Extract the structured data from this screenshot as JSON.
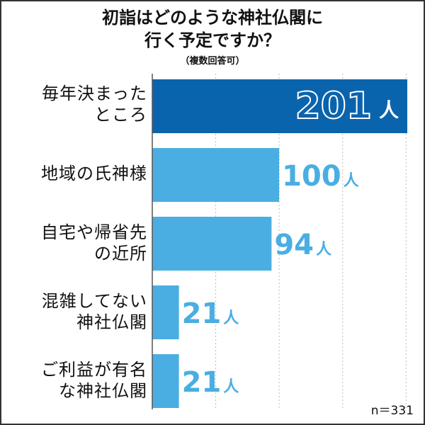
{
  "title": {
    "line1": "初詣はどのような神社仏閣に",
    "line2": "行く予定ですか？",
    "note": "（複数回答可）"
  },
  "chart_data": {
    "type": "bar",
    "orientation": "horizontal",
    "categories": [
      [
        "毎年決まった",
        "ところ"
      ],
      [
        "地域の氏神様"
      ],
      [
        "自宅や帰省先",
        "の近所"
      ],
      [
        "混雑してない",
        "神社仏閣"
      ],
      [
        "ご利益が有名",
        "な神社仏閣"
      ]
    ],
    "values": [
      201,
      100,
      94,
      21,
      21
    ],
    "value_labels": [
      "201",
      "100",
      "94",
      "21",
      "21"
    ],
    "unit": "人",
    "xlim": [
      0,
      201
    ],
    "grid": true,
    "highlight_index": 0,
    "sample_size": "n＝331"
  },
  "colors": {
    "highlight_bar": "#0a64ad",
    "bar": "#4aaee2",
    "label": "#4aaee2",
    "highlight_label": "#ffffff",
    "grid": "#bbbbbb"
  }
}
